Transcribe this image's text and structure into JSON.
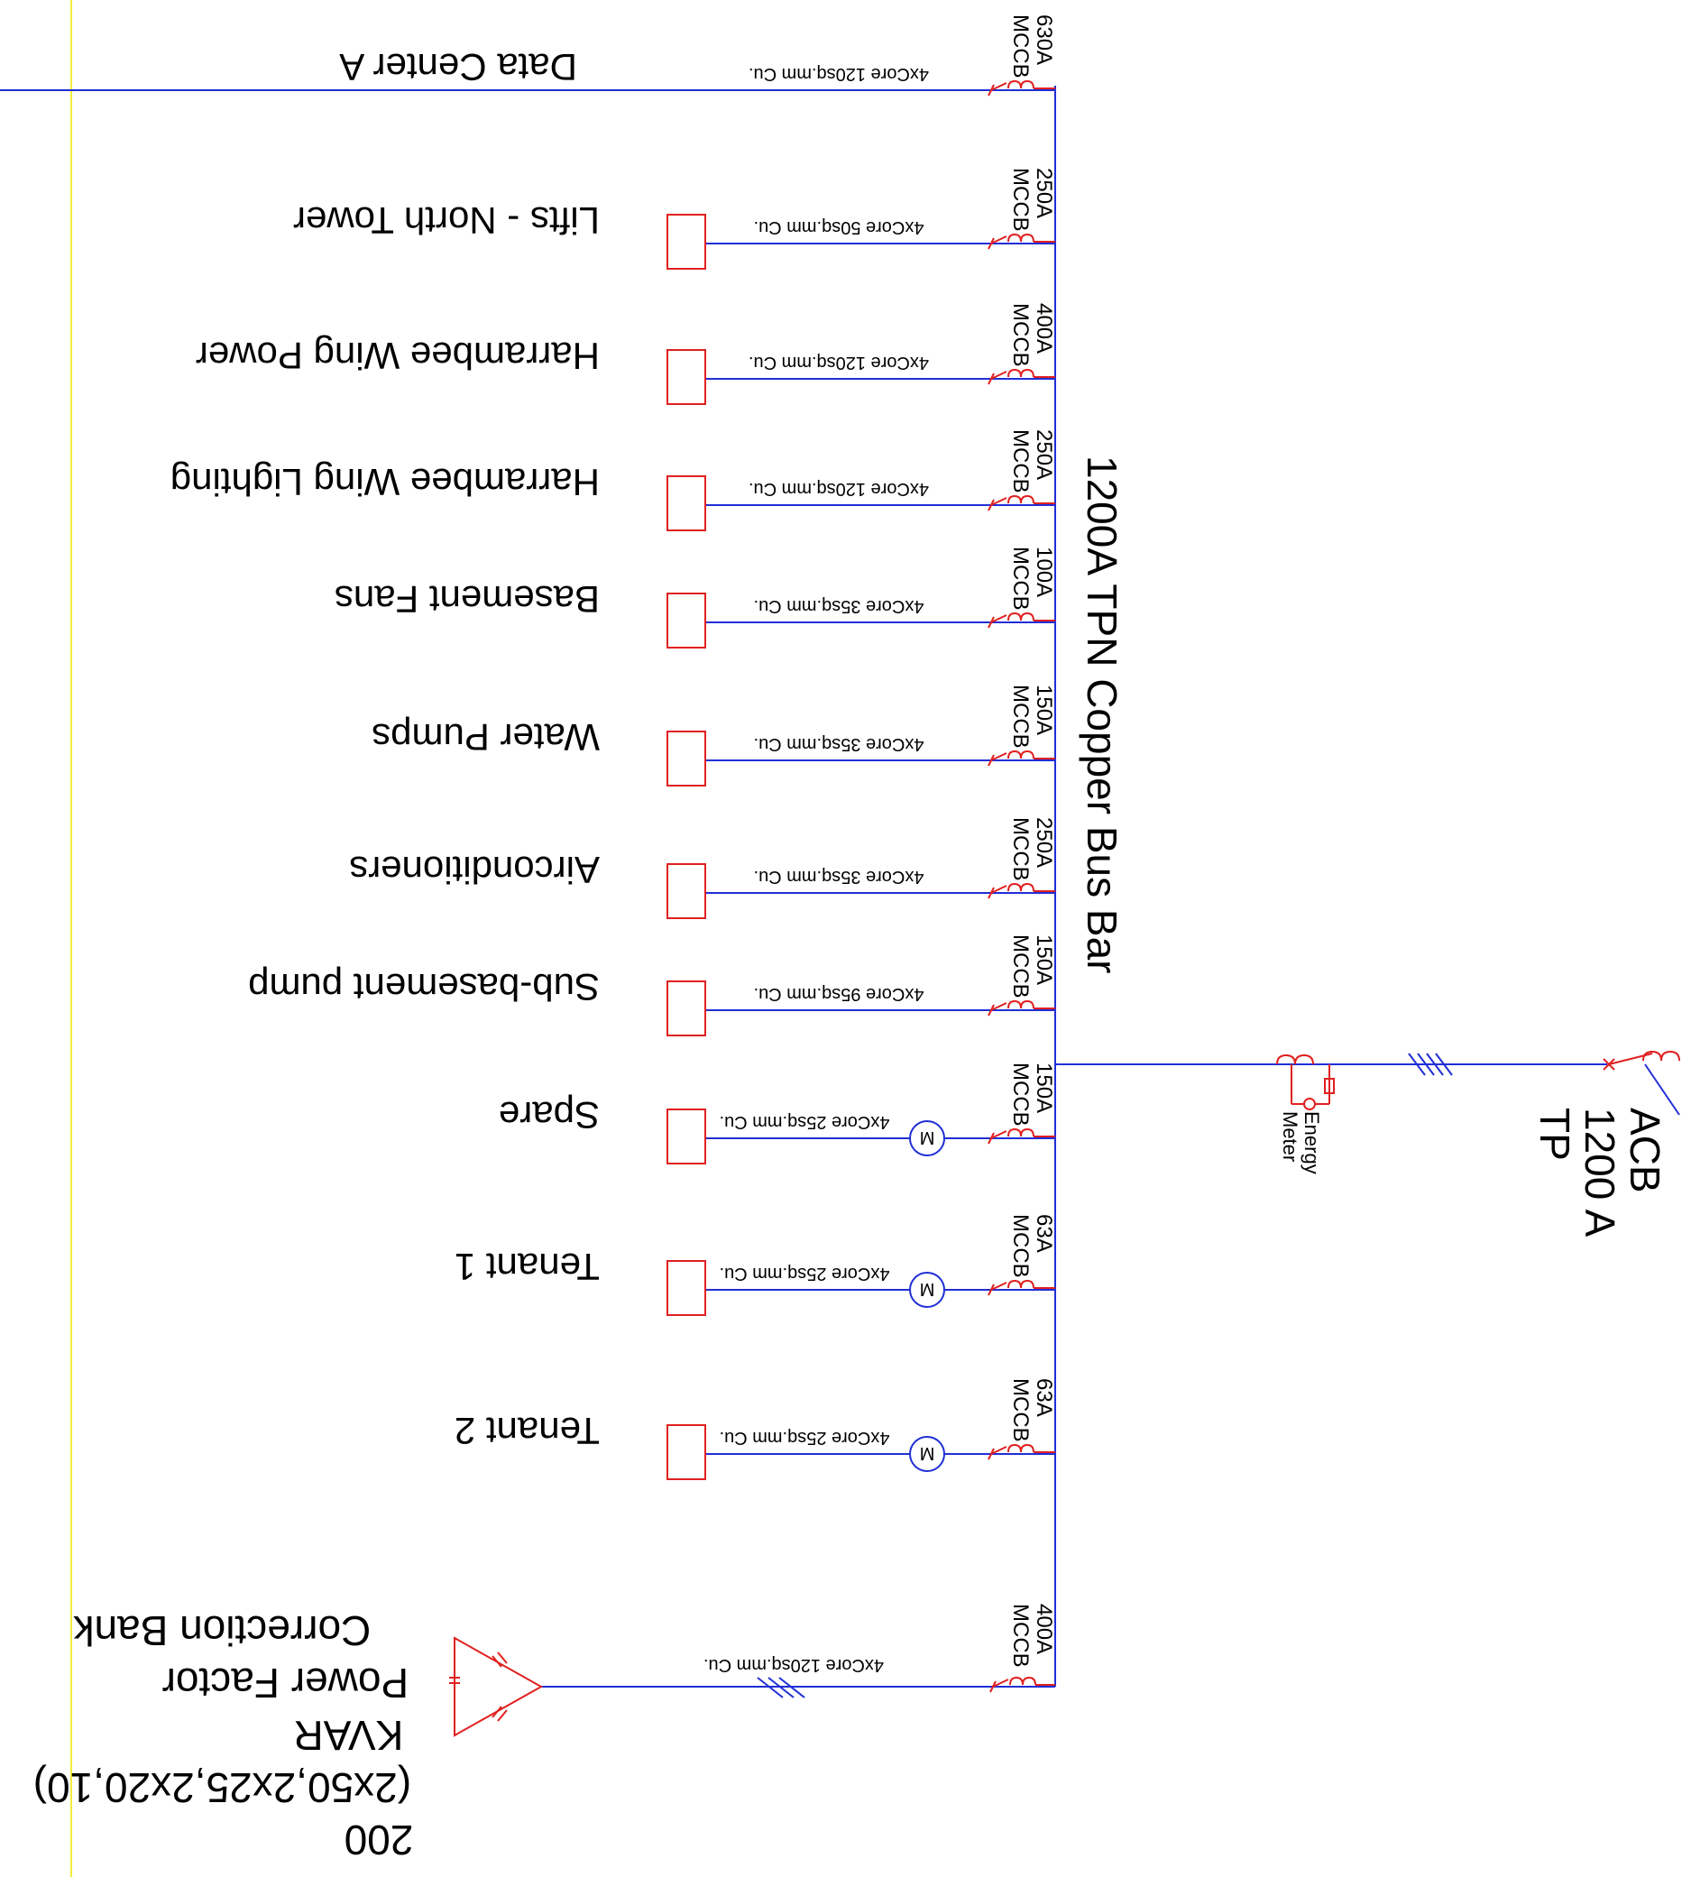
{
  "busbar": {
    "label": "1200A TPN Copper Bus Bar"
  },
  "incomer": {
    "acb_lines": [
      "ACB",
      "1200 A",
      "TP"
    ],
    "meter_lines": [
      "Energy",
      "Meter"
    ]
  },
  "feeders": [
    {
      "load": "Data Center A",
      "breaker_rating": "630A",
      "breaker_type": "MCCB",
      "cable": "4xCore 120sq.mm Cu.",
      "has_box": false,
      "has_motor": false
    },
    {
      "load": "Lifts - North Tower",
      "breaker_rating": "250A",
      "breaker_type": "MCCB",
      "cable": "4xCore 50sq.mm Cu.",
      "has_box": true,
      "has_motor": false
    },
    {
      "load": "Harrambee Wing Power",
      "breaker_rating": "400A",
      "breaker_type": "MCCB",
      "cable": "4xCore 120sq.mm Cu.",
      "has_box": true,
      "has_motor": false
    },
    {
      "load": "Harrambee Wing Lighting",
      "breaker_rating": "250A",
      "breaker_type": "MCCB",
      "cable": "4xCore 120sq.mm Cu.",
      "has_box": true,
      "has_motor": false
    },
    {
      "load": "Basement Fans",
      "breaker_rating": "100A",
      "breaker_type": "MCCB",
      "cable": "4xCore 35sq.mm Cu.",
      "has_box": true,
      "has_motor": false
    },
    {
      "load": "Water Pumps",
      "breaker_rating": "150A",
      "breaker_type": "MCCB",
      "cable": "4xCore 35sq.mm Cu.",
      "has_box": true,
      "has_motor": false
    },
    {
      "load": "Airconditioners",
      "breaker_rating": "250A",
      "breaker_type": "MCCB",
      "cable": "4xCore 35sq.mm Cu.",
      "has_box": true,
      "has_motor": false
    },
    {
      "load": "Sub-basement  pump",
      "breaker_rating": "150A",
      "breaker_type": "MCCB",
      "cable": "4xCore 95sq.mm Cu.",
      "has_box": true,
      "has_motor": false
    },
    {
      "load": "Spare",
      "breaker_rating": "150A",
      "breaker_type": "MCCB",
      "cable": "4xCore 25sq.mm Cu.",
      "has_box": true,
      "has_motor": true
    },
    {
      "load": "Tenant 1",
      "breaker_rating": "63A",
      "breaker_type": "MCCB",
      "cable": "4xCore 25sq.mm Cu.",
      "has_box": true,
      "has_motor": true
    },
    {
      "load": "Tenant 2",
      "breaker_rating": "63A",
      "breaker_type": "MCCB",
      "cable": "4xCore 25sq.mm Cu.",
      "has_box": true,
      "has_motor": true
    }
  ],
  "pfc": {
    "breaker_rating": "400A",
    "breaker_type": "MCCB",
    "cable": "4xCore 120sq.mm Cu.",
    "label_lines": [
      "Correction Bank",
      "Power Factor",
      "KVAR",
      "(2x50,2x25,2x20,10)",
      "200"
    ]
  },
  "motor_symbol": "M"
}
